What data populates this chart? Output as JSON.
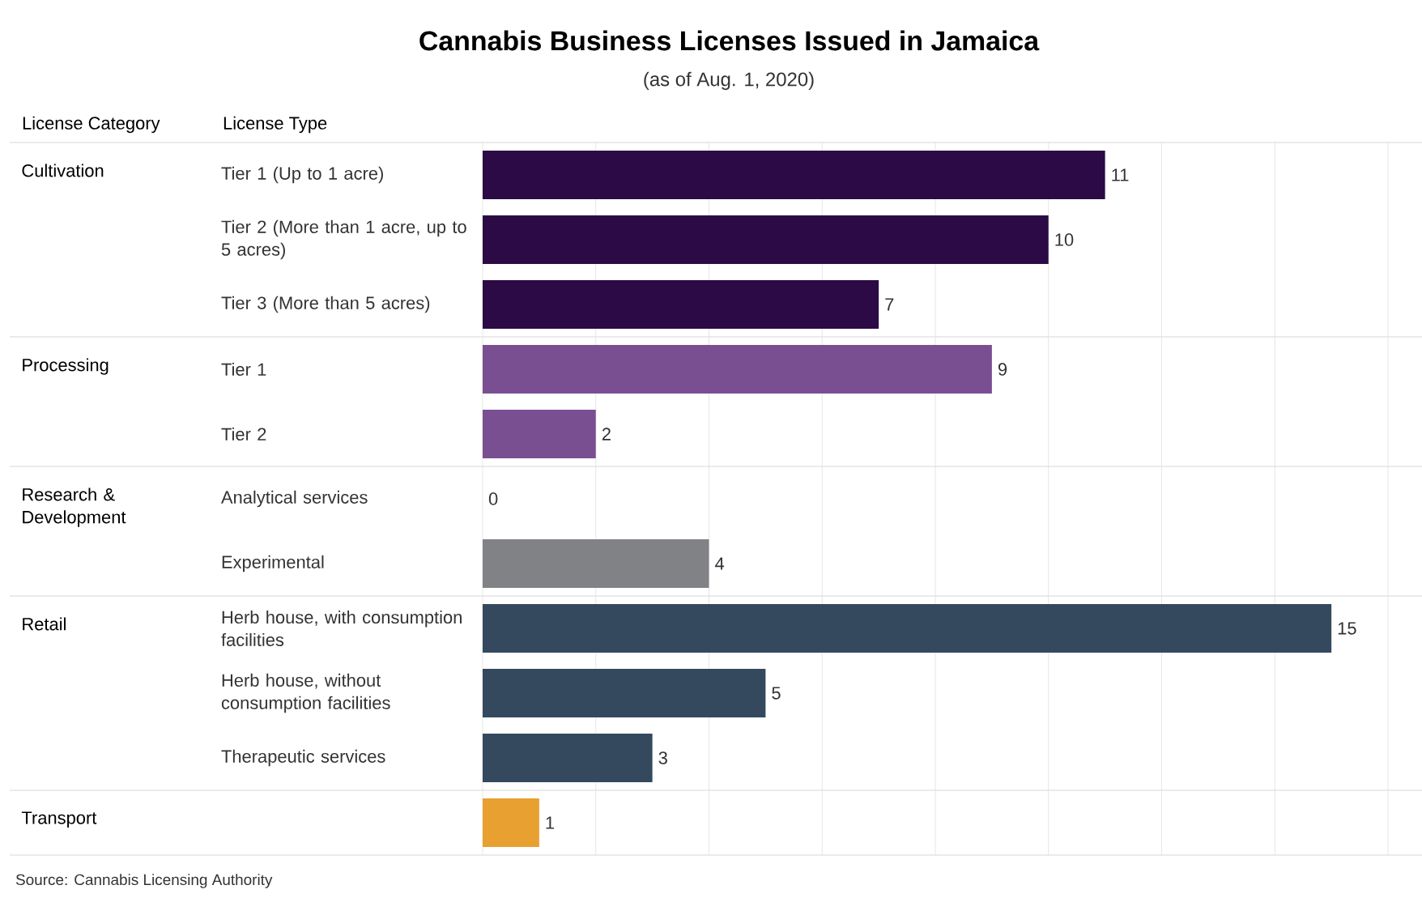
{
  "chart_data": {
    "type": "bar",
    "orientation": "horizontal",
    "title": "Cannabis Business Licenses Issued in Jamaica",
    "subtitle": "(as of Aug. 1, 2020)",
    "ylabel": "License Type",
    "categories": [
      "Tier 1 (Up to 1 acre)",
      "Tier 2 (More than 1 acre, up to 5 acres)",
      "Tier 3 (More than 5 acres)",
      "Tier 1",
      "Tier 2",
      "Analytical services",
      "Experimental",
      "Herb house, with consumption facilities",
      "Herb house, without consumption facilities",
      "Therapeutic services",
      null
    ],
    "values": [
      11,
      10,
      7,
      9,
      2,
      0,
      4,
      15,
      5,
      3,
      1
    ],
    "colors": [
      "#2b0a46",
      "#2b0a46",
      "#2b0a46",
      "#7a4f91",
      "#7a4f91",
      "#808285",
      "#808285",
      "#34495e",
      "#34495e",
      "#34495e",
      "#e8a030"
    ],
    "xlim": [
      0,
      16
    ],
    "xticks": [
      {
        "value": 0,
        "label": null
      },
      {
        "value": 2,
        "label": null
      },
      {
        "value": 4,
        "label": null
      },
      {
        "value": 6,
        "label": null
      },
      {
        "value": 8,
        "label": null
      },
      {
        "value": 10,
        "label": null
      },
      {
        "value": 12,
        "label": null
      },
      {
        "value": 14,
        "label": null
      },
      {
        "value": 16,
        "label": null
      }
    ],
    "grid": "x",
    "tick_labels": "y",
    "data_labels": true,
    "annotations": [
      "License Category",
      "Cultivation",
      "Processing",
      "Research & Development",
      "Retail",
      "Transport",
      "Source: Cannabis Licensing Authority"
    ]
  }
}
